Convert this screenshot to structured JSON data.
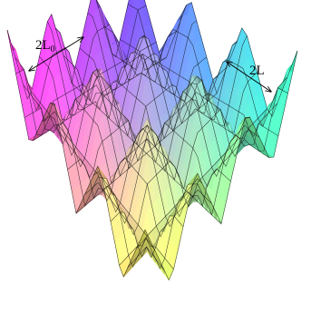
{
  "surface": {
    "grid": {
      "rows": 8,
      "cols": 8,
      "peaks": 3
    },
    "colors": {
      "corner_top": "#ff3ad8",
      "corner_right": "#6a4bff",
      "corner_bottom": "#ffff5a",
      "corner_left": "#35f0b8",
      "mesh_line": "#111111"
    }
  },
  "labels": {
    "left_dimension": "2L",
    "left_dimension_sub": "0",
    "right_dimension": "2L"
  },
  "arrows": {
    "style": "double-headed"
  }
}
